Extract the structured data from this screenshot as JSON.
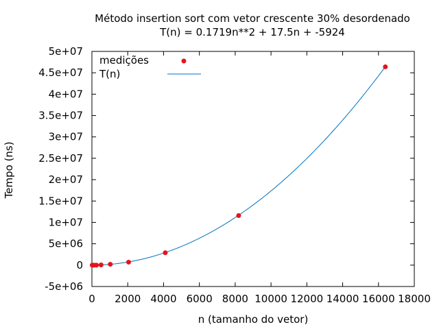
{
  "chart_data": {
    "type": "scatter",
    "title": "Método insertion sort com vetor crescente 30% desordenado",
    "subtitle": "T(n) = 0.1719n**2 + 17.5n + -5924",
    "xlabel": "n (tamanho do vetor)",
    "ylabel": "Tempo (ns)",
    "xlim": [
      0,
      18000
    ],
    "ylim": [
      -5000000,
      50000000
    ],
    "x_ticks": [
      0,
      2000,
      4000,
      6000,
      8000,
      10000,
      12000,
      14000,
      16000,
      18000
    ],
    "x_tick_labels": [
      "0",
      "2000",
      "4000",
      "6000",
      "8000",
      "10000",
      "12000",
      "14000",
      "16000",
      "18000"
    ],
    "y_ticks": [
      -5000000,
      0,
      5000000,
      10000000,
      15000000,
      20000000,
      25000000,
      30000000,
      35000000,
      40000000,
      45000000,
      50000000
    ],
    "y_tick_labels": [
      "-5e+06",
      "0",
      "5e+06",
      "1e+07",
      "1.5e+07",
      "2e+07",
      "2.5e+07",
      "3e+07",
      "3.5e+07",
      "4e+07",
      "4.5e+07",
      "5e+07"
    ],
    "legend_position": "top-left",
    "grid": false,
    "series": [
      {
        "name": "medições",
        "kind": "points",
        "color": "#e4141e",
        "x": [
          16,
          32,
          64,
          128,
          256,
          512,
          1024,
          2048,
          4096,
          8192,
          16384
        ],
        "y": [
          0,
          0,
          0,
          0,
          0,
          50000,
          200000,
          700000,
          2900000,
          11600000,
          46400000
        ]
      },
      {
        "name": "T(n)",
        "kind": "line",
        "color": "#0072bd",
        "formula": "0.1719n**2 + 17.5n + -5924",
        "coefficients": [
          0.1719,
          17.5,
          -5924
        ],
        "x_range": [
          0,
          16384
        ]
      }
    ]
  }
}
